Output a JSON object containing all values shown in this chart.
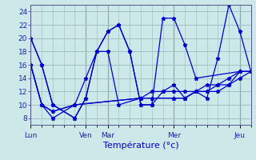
{
  "title": "Température (°c)",
  "bg_color": "#cce8e8",
  "grid_color": "#99bbbb",
  "line_color": "#0000cc",
  "ylim": [
    7,
    25
  ],
  "yticks": [
    8,
    10,
    12,
    14,
    16,
    18,
    20,
    22,
    24
  ],
  "day_labels": [
    "Lun",
    "Ven",
    "Mar",
    "Mer",
    "Jeu"
  ],
  "day_x": [
    0,
    5,
    7,
    13,
    19
  ],
  "xlim": [
    0,
    20
  ],
  "lines": [
    {
      "x": [
        0,
        1,
        2,
        4,
        5,
        6,
        7,
        8,
        9,
        10,
        11,
        12,
        13,
        14,
        15,
        16,
        17,
        18,
        19,
        20
      ],
      "y": [
        20,
        16,
        10,
        8,
        11,
        18,
        21,
        22,
        18,
        10,
        10,
        12,
        13,
        11,
        12,
        11,
        17,
        25,
        21,
        15
      ]
    },
    {
      "x": [
        0,
        1,
        2,
        4,
        5,
        6,
        7,
        8,
        9,
        10,
        11,
        12,
        13,
        14,
        15,
        19,
        20
      ],
      "y": [
        20,
        16,
        10,
        8,
        11,
        18,
        21,
        22,
        18,
        10,
        10,
        23,
        23,
        19,
        14,
        15,
        15
      ]
    },
    {
      "x": [
        0,
        1,
        2,
        4,
        5,
        6,
        7,
        8,
        10,
        11,
        12,
        13,
        14,
        15,
        16,
        17,
        18,
        19,
        20
      ],
      "y": [
        16,
        10,
        8,
        10,
        14,
        18,
        18,
        10,
        11,
        12,
        12,
        12,
        12,
        12,
        13,
        13,
        14,
        15,
        15
      ]
    },
    {
      "x": [
        0,
        1,
        2,
        4,
        10,
        11,
        13,
        14,
        15,
        16,
        17,
        18,
        19,
        20
      ],
      "y": [
        16,
        10,
        9,
        10,
        11,
        11,
        11,
        11,
        12,
        12,
        12,
        13,
        14,
        15
      ]
    },
    {
      "x": [
        0,
        1,
        2,
        4,
        10,
        11,
        13,
        14,
        15,
        16,
        17,
        18,
        19,
        20
      ],
      "y": [
        16,
        10,
        9,
        10,
        11,
        11,
        11,
        11,
        12,
        12,
        13,
        13,
        15,
        15
      ]
    }
  ]
}
